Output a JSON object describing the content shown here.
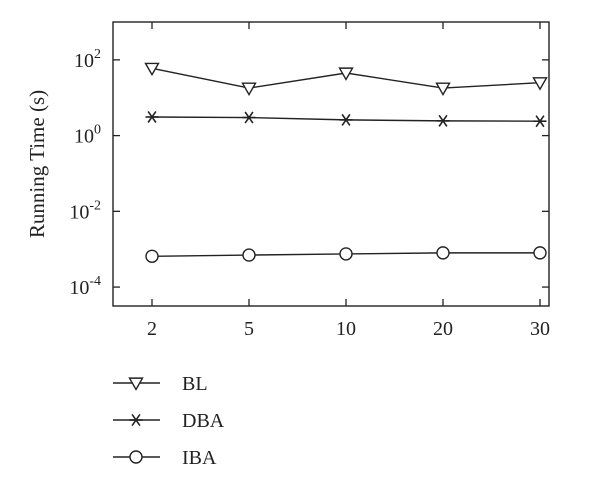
{
  "chart_data": {
    "type": "line",
    "ylabel": "Running Time (s)",
    "xlabel": "",
    "y_scale": "log",
    "ylim": [
      0.0001,
      1000
    ],
    "categories": [
      "2",
      "5",
      "10",
      "20",
      "30"
    ],
    "y_ticks": [
      {
        "base": "10",
        "exp": "2",
        "value": 100
      },
      {
        "base": "10",
        "exp": "0",
        "value": 1
      },
      {
        "base": "10",
        "exp": "-2",
        "value": 0.01
      },
      {
        "base": "10",
        "exp": "-4",
        "value": 0.0001
      }
    ],
    "grid": false,
    "legend_position": "bottom-left",
    "series": [
      {
        "name": "BL",
        "marker": "triangle-down",
        "color": "#222222",
        "values": [
          60,
          18,
          45,
          18,
          25
        ]
      },
      {
        "name": "DBA",
        "marker": "asterisk",
        "color": "#222222",
        "values": [
          3.1,
          3.0,
          2.6,
          2.45,
          2.4
        ]
      },
      {
        "name": "IBA",
        "marker": "circle",
        "color": "#222222",
        "values": [
          0.00065,
          0.0007,
          0.00075,
          0.0008,
          0.0008
        ]
      }
    ]
  }
}
